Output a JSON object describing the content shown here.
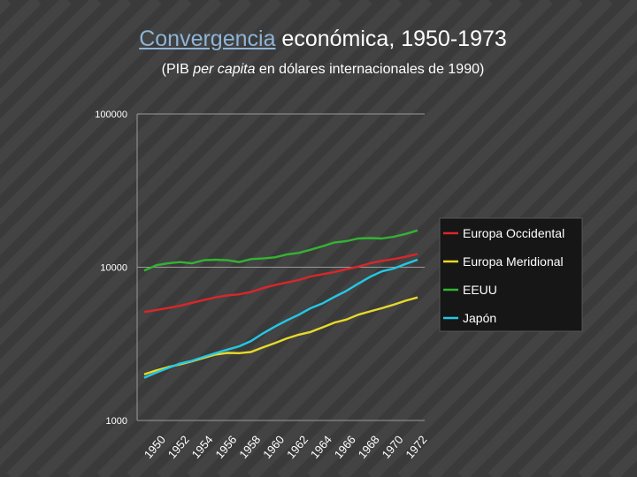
{
  "slide": {
    "title_link": "Convergencia",
    "title_rest": " económica, 1950-1973",
    "subtitle_pre": "(PIB ",
    "subtitle_italic": "per capita",
    "subtitle_post": " en dólares internacionales de 1990)"
  },
  "colors": {
    "background": "#3a3a3a",
    "stripes": "#434343",
    "link": "#8fb4d6",
    "axis": "#9a9a9a",
    "legend_bg": "#161616"
  },
  "chart_data": {
    "type": "line",
    "y_scale": "log",
    "ylim": [
      1000,
      100000
    ],
    "yticks": [
      100000,
      10000,
      1000
    ],
    "ytick_labels": [
      "100000",
      "10000",
      "1000"
    ],
    "x": [
      1950,
      1951,
      1952,
      1953,
      1954,
      1955,
      1956,
      1957,
      1958,
      1959,
      1960,
      1961,
      1962,
      1963,
      1964,
      1965,
      1966,
      1967,
      1968,
      1969,
      1970,
      1971,
      1972,
      1973
    ],
    "xtick_labels": [
      "1950",
      "1952",
      "1954",
      "1956",
      "1958",
      "1960",
      "1962",
      "1964",
      "1966",
      "1968",
      "1970",
      "1972"
    ],
    "legend_position": "right",
    "series": [
      {
        "name": "Europa  Occidental",
        "color": "#d9262a",
        "values": [
          5100,
          5250,
          5420,
          5600,
          5850,
          6100,
          6350,
          6550,
          6650,
          6900,
          7300,
          7650,
          7950,
          8250,
          8700,
          9000,
          9300,
          9700,
          10100,
          10600,
          11000,
          11300,
          11700,
          12200
        ]
      },
      {
        "name": "Europa  Meridional",
        "color": "#e8d92a",
        "values": [
          2000,
          2120,
          2230,
          2320,
          2430,
          2560,
          2690,
          2760,
          2750,
          2800,
          3000,
          3200,
          3430,
          3630,
          3780,
          4050,
          4350,
          4550,
          4900,
          5150,
          5400,
          5700,
          6050,
          6350
        ]
      },
      {
        "name": "EEUU",
        "color": "#33b332",
        "values": [
          9500,
          10300,
          10600,
          10800,
          10600,
          11100,
          11200,
          11100,
          10800,
          11300,
          11400,
          11600,
          12100,
          12400,
          13000,
          13700,
          14500,
          14800,
          15400,
          15500,
          15400,
          15800,
          16500,
          17400
        ]
      },
      {
        "name": "Japón",
        "color": "#22c8e6",
        "values": [
          1900,
          2050,
          2200,
          2350,
          2450,
          2600,
          2750,
          2900,
          3050,
          3300,
          3700,
          4100,
          4500,
          4900,
          5400,
          5800,
          6400,
          7000,
          7800,
          8650,
          9400,
          9800,
          10500,
          11200
        ]
      }
    ]
  }
}
